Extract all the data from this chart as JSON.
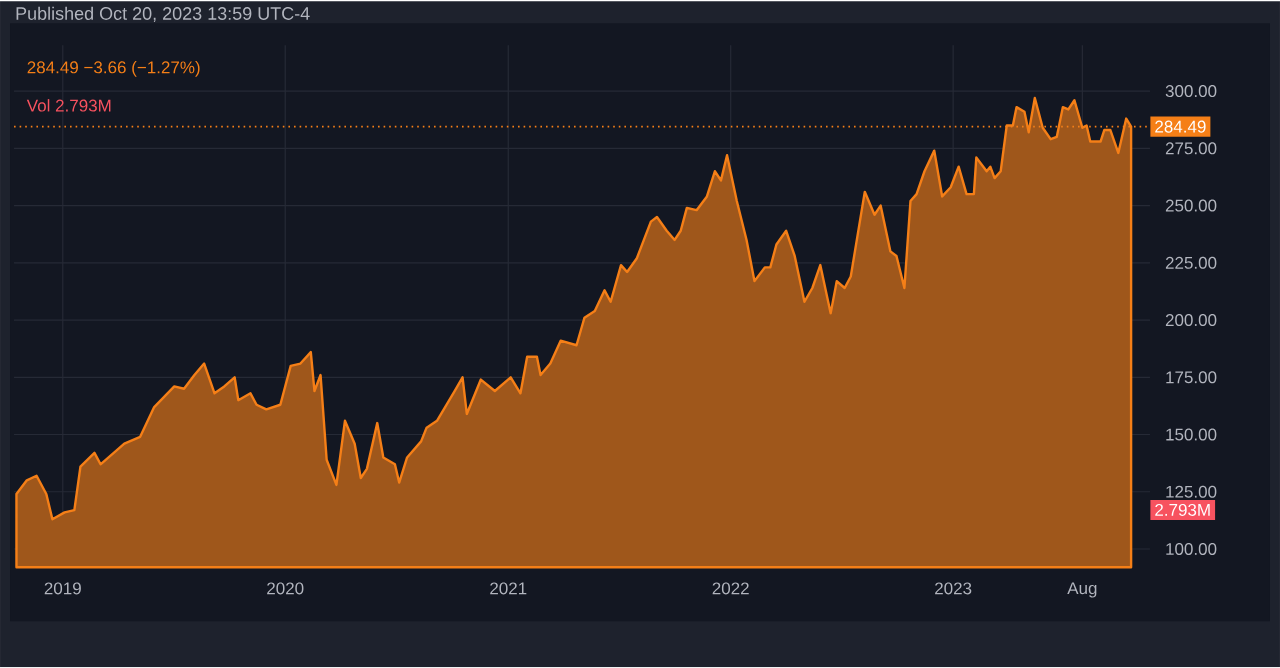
{
  "chart_data": {
    "type": "area",
    "title": "Published Oct 20, 2023 13:59 UTC-4",
    "annotations": [
      "284.49 −3.66 (−1.27%)",
      "Vol 2.793M",
      "2.793M"
    ],
    "color": "#f57f17",
    "x": [
      "2018-10-17",
      "2018-11-03",
      "2018-11-19",
      "2018-12-05",
      "2018-12-15",
      "2019-01-04",
      "2019-01-20",
      "2019-01-30",
      "2019-02-22",
      "2019-03-04",
      "2019-04-12",
      "2019-05-08",
      "2019-05-31",
      "2019-07-03",
      "2019-07-19",
      "2019-08-05",
      "2019-08-21",
      "2019-09-07",
      "2019-09-23",
      "2019-10-10",
      "2019-10-16",
      "2019-11-05",
      "2019-11-15",
      "2019-12-01",
      "2019-12-24",
      "2020-01-10",
      "2020-01-26",
      "2020-02-12",
      "2020-02-18",
      "2020-02-28",
      "2020-03-09",
      "2020-03-25",
      "2020-04-08",
      "2020-04-24",
      "2020-05-04",
      "2020-05-14",
      "2020-05-31",
      "2020-06-10",
      "2020-06-29",
      "2020-07-06",
      "2020-07-19",
      "2020-08-11",
      "2020-08-20",
      "2020-09-06",
      "2020-10-05",
      "2020-10-18",
      "2020-10-25",
      "2020-11-17",
      "2020-12-10",
      "2021-01-05",
      "2021-01-21",
      "2021-02-01",
      "2021-02-17",
      "2021-02-23",
      "2021-03-11",
      "2021-03-28",
      "2021-04-23",
      "2021-05-06",
      "2021-05-23",
      "2021-06-08",
      "2021-06-18",
      "2021-07-05",
      "2021-07-15",
      "2021-07-31",
      "2021-08-23",
      "2021-09-02",
      "2021-09-18",
      "2021-10-01",
      "2021-10-11",
      "2021-10-21",
      "2021-11-06",
      "2021-11-23",
      "2021-12-06",
      "2021-12-16",
      "2021-12-26",
      "2022-01-11",
      "2022-01-27",
      "2022-02-09",
      "2022-02-26",
      "2022-03-07",
      "2022-03-17",
      "2022-04-02",
      "2022-04-16",
      "2022-05-02",
      "2022-05-15",
      "2022-05-28",
      "2022-06-14",
      "2022-06-24",
      "2022-07-07",
      "2022-07-17",
      "2022-08-09",
      "2022-08-25",
      "2022-09-04",
      "2022-09-20",
      "2022-09-30",
      "2022-10-13",
      "2022-10-23",
      "2022-11-02",
      "2022-11-15",
      "2022-12-01",
      "2022-12-14",
      "2022-12-28",
      "2023-01-10",
      "2023-01-23",
      "2023-02-04",
      "2023-02-08",
      "2023-02-25",
      "2023-03-03",
      "2023-03-10",
      "2023-03-20",
      "2023-03-30",
      "2023-04-09",
      "2023-04-15",
      "2023-04-28",
      "2023-05-05",
      "2023-05-15",
      "2023-05-28",
      "2023-06-10",
      "2023-06-20",
      "2023-06-30",
      "2023-07-09",
      "2023-07-19",
      "2023-08-01",
      "2023-08-08",
      "2023-08-14",
      "2023-08-31",
      "2023-09-06",
      "2023-09-16",
      "2023-09-29",
      "2023-10-12",
      "2023-10-20"
    ],
    "values": [
      124,
      130,
      132,
      124,
      113,
      116,
      117,
      136,
      142,
      137,
      146,
      149,
      162,
      171,
      170,
      176,
      181,
      168,
      171,
      175,
      165,
      168,
      163,
      161,
      163,
      180,
      181,
      186,
      169,
      176,
      139,
      128,
      156,
      146,
      131,
      135,
      155,
      140,
      137,
      129,
      140,
      147,
      153,
      156,
      169,
      175,
      159,
      174,
      169,
      175,
      168,
      184,
      184,
      176,
      181,
      191,
      189,
      201,
      204,
      213,
      208,
      224,
      221,
      227,
      243,
      245,
      239,
      235,
      239,
      249,
      248,
      254,
      265,
      261,
      272,
      252,
      235,
      217,
      223,
      223,
      233,
      239,
      228,
      208,
      214,
      224,
      203,
      217,
      214,
      219,
      256,
      246,
      250,
      230,
      228,
      214,
      252,
      255,
      265,
      274,
      254,
      258,
      267,
      255,
      255,
      271,
      265,
      267,
      262,
      265,
      285,
      285,
      293,
      291,
      282,
      297,
      284,
      279,
      280,
      293,
      292,
      296,
      284,
      285,
      278,
      278,
      283,
      283,
      273,
      288,
      284.49
    ],
    "xlim": [
      "2018-10-13",
      "2023-11-20"
    ],
    "ylim": [
      92,
      320
    ],
    "xticks": [
      {
        "value": "2019-01-01",
        "label": "2019"
      },
      {
        "value": "2020-01-01",
        "label": "2020"
      },
      {
        "value": "2021-01-01",
        "label": "2021"
      },
      {
        "value": "2022-01-01",
        "label": "2022"
      },
      {
        "value": "2023-01-01",
        "label": "2023"
      },
      {
        "value": "2023-08-01",
        "label": "Aug"
      }
    ],
    "yticks": [
      {
        "value": 100,
        "label": "100.00"
      },
      {
        "value": 125,
        "label": "125.00"
      },
      {
        "value": 150,
        "label": "150.00"
      },
      {
        "value": 175,
        "label": "175.00"
      },
      {
        "value": 200,
        "label": "200.00"
      },
      {
        "value": 225,
        "label": "225.00"
      },
      {
        "value": 250,
        "label": "250.00"
      },
      {
        "value": 275,
        "label": "275.00"
      },
      {
        "value": 300,
        "label": "300.00"
      }
    ],
    "grid": true,
    "ref_lines": [
      {
        "axis": "y",
        "value": 284.49,
        "label": "284.49",
        "color": "#f57f17",
        "line_style": "dotted"
      }
    ]
  }
}
